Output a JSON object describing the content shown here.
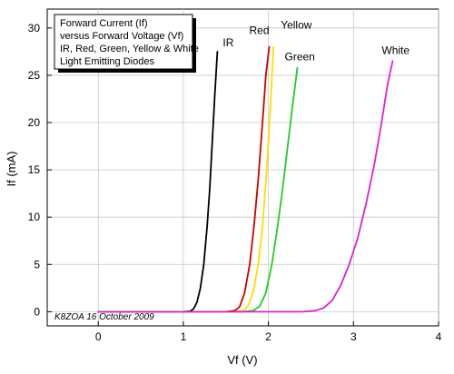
{
  "chart_data": {
    "type": "line",
    "xlabel": "Vf (V)",
    "ylabel": "If (mA)",
    "xlim": [
      -0.6,
      4.0
    ],
    "ylim": [
      -1.5,
      32.0
    ],
    "x_ticks": [
      0,
      1,
      2,
      3,
      4
    ],
    "y_ticks": [
      0,
      5,
      10,
      15,
      20,
      25,
      30
    ],
    "grid": true,
    "legend_text": [
      "Forward Current (If)",
      "versus Forward Voltage (Vf)",
      "IR, Red, Green, Yellow & White",
      "Light Emitting Diodes"
    ],
    "credit": "K8ZOA 16 October 2009",
    "series": [
      {
        "name": "IR",
        "color": "#000000",
        "points": [
          [
            0,
            0
          ],
          [
            1.0,
            0.0
          ],
          [
            1.08,
            0.05
          ],
          [
            1.12,
            0.3
          ],
          [
            1.16,
            1.0
          ],
          [
            1.2,
            2.5
          ],
          [
            1.24,
            5.0
          ],
          [
            1.28,
            9.0
          ],
          [
            1.31,
            13.0
          ],
          [
            1.34,
            18.0
          ],
          [
            1.37,
            23.0
          ],
          [
            1.4,
            27.5
          ]
        ]
      },
      {
        "name": "Red",
        "color": "#cc0000",
        "points": [
          [
            0,
            0
          ],
          [
            1.5,
            0.0
          ],
          [
            1.6,
            0.1
          ],
          [
            1.66,
            0.5
          ],
          [
            1.72,
            2.0
          ],
          [
            1.78,
            5.0
          ],
          [
            1.83,
            9.0
          ],
          [
            1.88,
            14.0
          ],
          [
            1.93,
            20.0
          ],
          [
            1.97,
            25.0
          ],
          [
            2.01,
            28.0
          ]
        ]
      },
      {
        "name": "Yellow",
        "color": "#ffdd00",
        "points": [
          [
            0,
            0
          ],
          [
            1.6,
            0.0
          ],
          [
            1.7,
            0.1
          ],
          [
            1.76,
            0.6
          ],
          [
            1.82,
            2.0
          ],
          [
            1.88,
            5.0
          ],
          [
            1.93,
            9.0
          ],
          [
            1.98,
            15.0
          ],
          [
            2.02,
            21.0
          ],
          [
            2.06,
            28.0
          ]
        ]
      },
      {
        "name": "Green",
        "color": "#22cc22",
        "points": [
          [
            0,
            0
          ],
          [
            1.7,
            0.0
          ],
          [
            1.82,
            0.1
          ],
          [
            1.9,
            0.6
          ],
          [
            1.97,
            2.0
          ],
          [
            2.04,
            5.0
          ],
          [
            2.1,
            8.5
          ],
          [
            2.16,
            12.5
          ],
          [
            2.22,
            17.0
          ],
          [
            2.28,
            21.5
          ],
          [
            2.34,
            25.8
          ]
        ]
      },
      {
        "name": "White",
        "color": "#dd22cc",
        "points": [
          [
            0,
            0
          ],
          [
            2.4,
            0.0
          ],
          [
            2.55,
            0.1
          ],
          [
            2.65,
            0.4
          ],
          [
            2.75,
            1.2
          ],
          [
            2.85,
            2.8
          ],
          [
            2.95,
            5.0
          ],
          [
            3.05,
            7.8
          ],
          [
            3.15,
            11.5
          ],
          [
            3.25,
            15.8
          ],
          [
            3.33,
            20.0
          ],
          [
            3.4,
            24.0
          ],
          [
            3.46,
            26.5
          ]
        ]
      }
    ]
  }
}
